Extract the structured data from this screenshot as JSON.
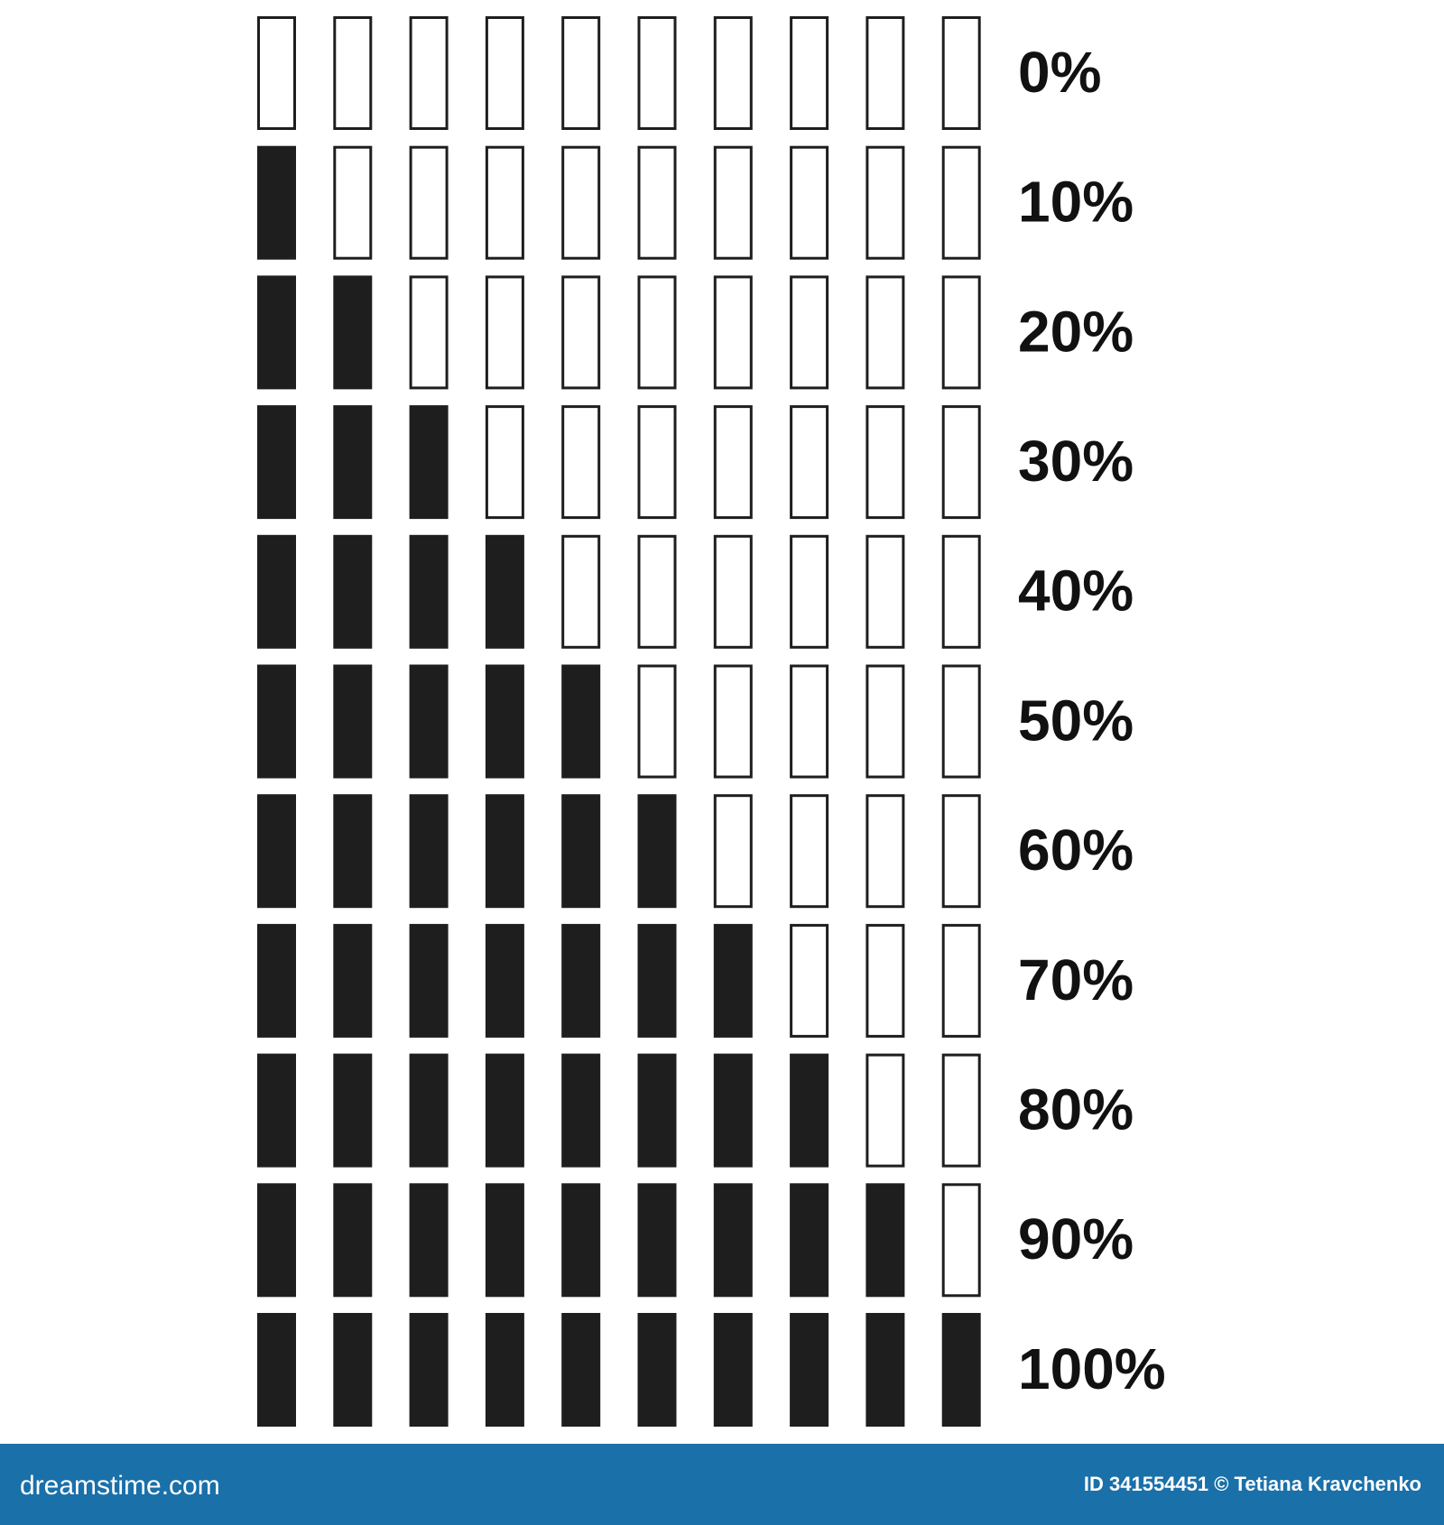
{
  "chart_data": {
    "type": "progress",
    "values": [
      0,
      10,
      20,
      30,
      40,
      50,
      60,
      70,
      80,
      90,
      100
    ],
    "value_labels": [
      "0%",
      "10%",
      "20%",
      "30%",
      "40%",
      "50%",
      "60%",
      "70%",
      "80%",
      "90%",
      "100%"
    ],
    "xlim": [
      0,
      100
    ],
    "color": "#1e1e1e"
  },
  "footer": {
    "site": "dreamstime.com",
    "credit": "ID 341554451 © Tetiana Kravchenko"
  }
}
